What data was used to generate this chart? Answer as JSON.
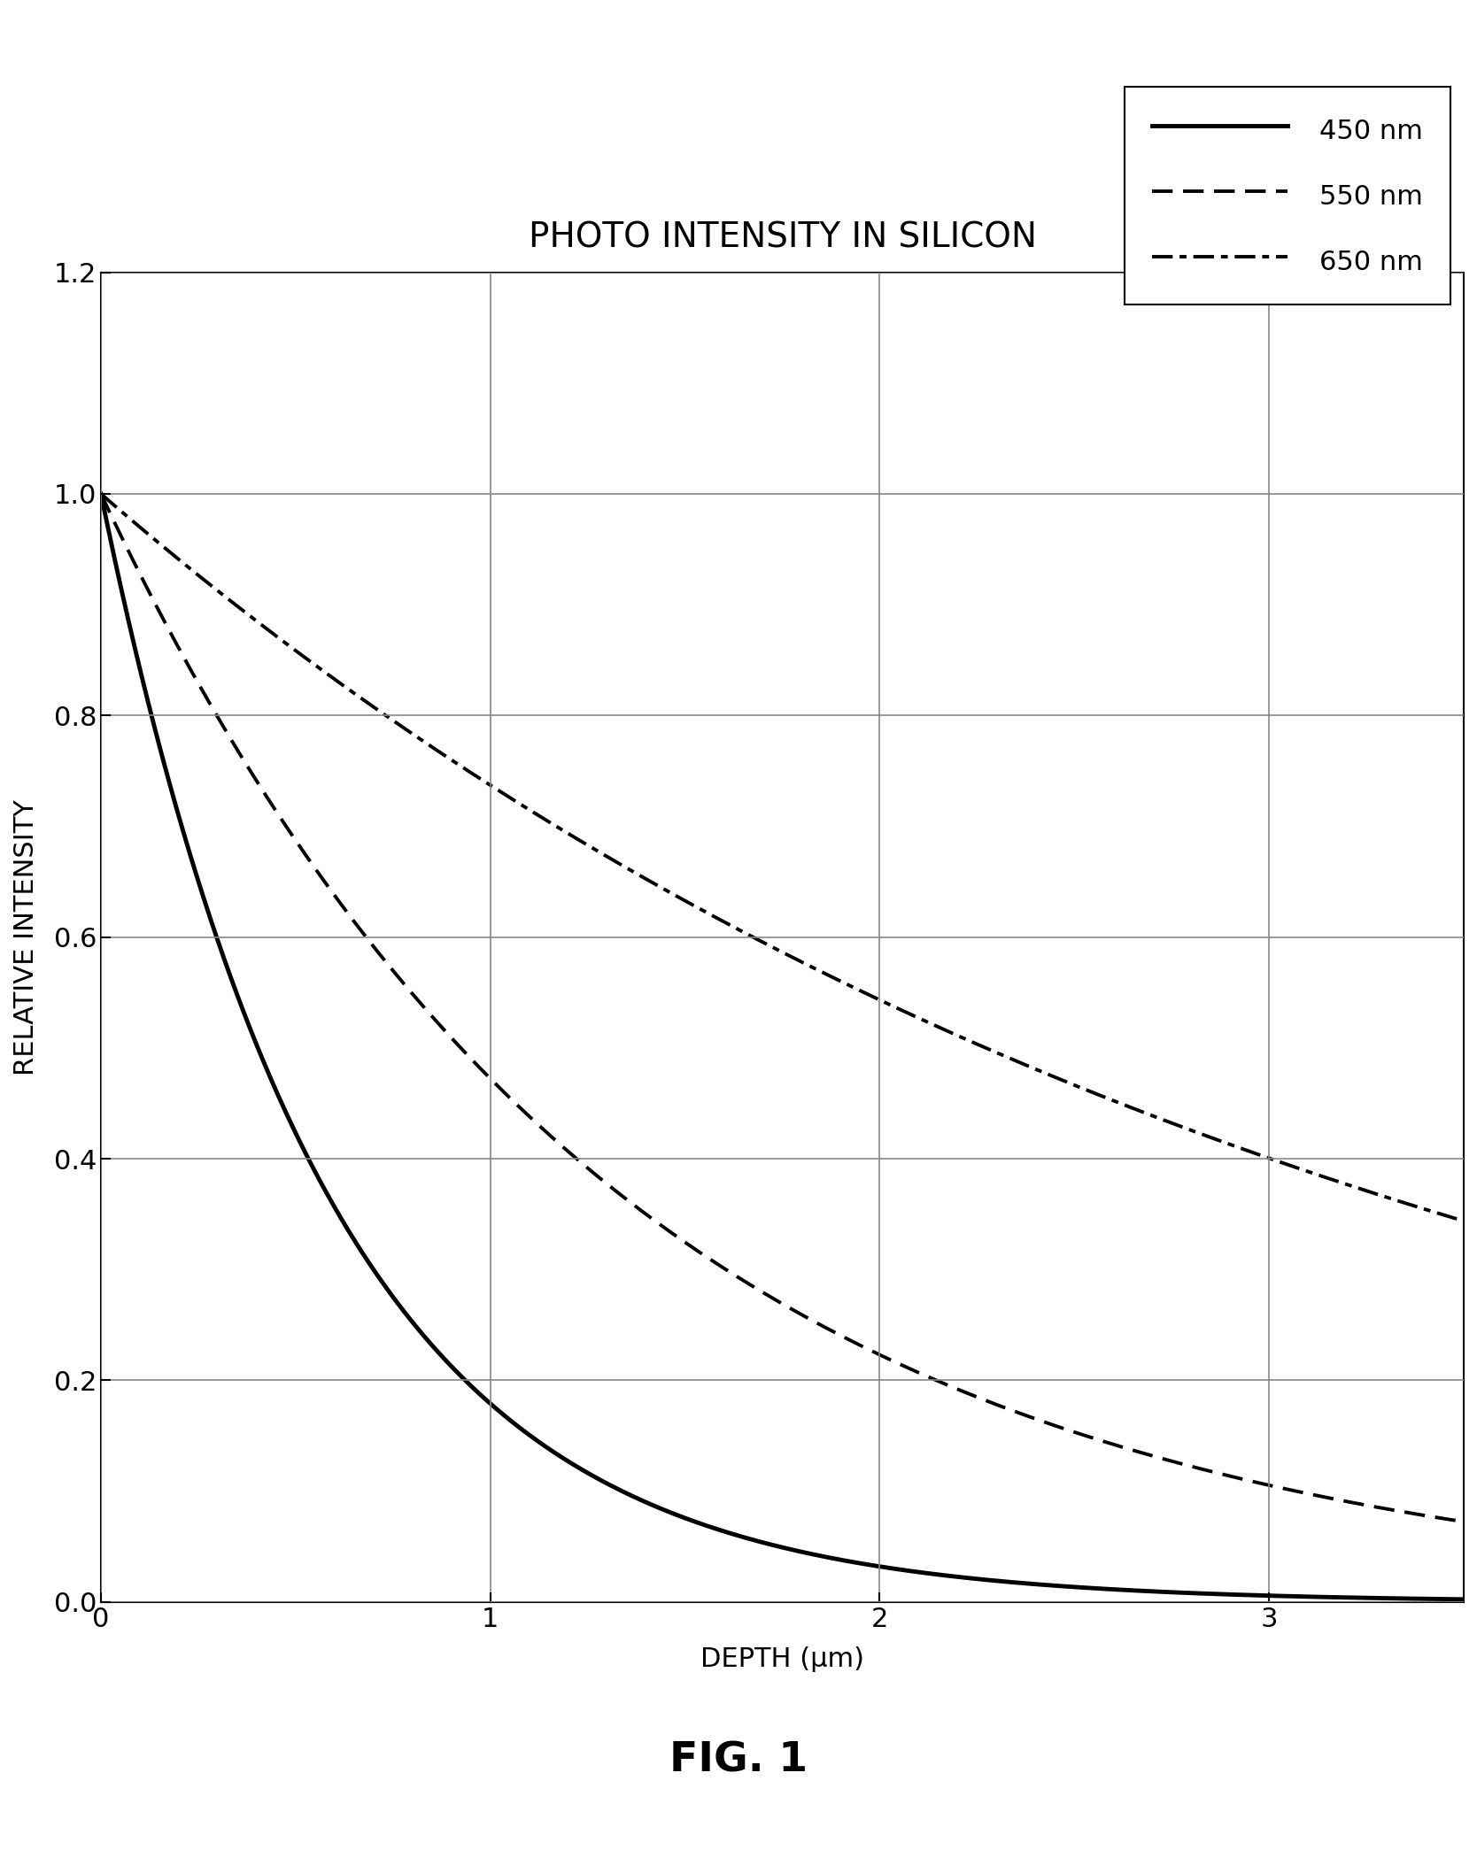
{
  "title": "PHOTO INTENSITY IN SILICON",
  "xlabel": "DEPTH (μm)",
  "ylabel": "RELATIVE INTENSITY",
  "fig_label": "FIG. 1",
  "xlim": [
    0,
    3.5
  ],
  "ylim": [
    0,
    1.2
  ],
  "xticks": [
    0,
    1,
    2,
    3
  ],
  "yticks": [
    0,
    0.2,
    0.4,
    0.6,
    0.8,
    1.0,
    1.2
  ],
  "series": [
    {
      "label": "450 nm",
      "linestyle": "solid",
      "linewidth": 3.5,
      "color": "#000000",
      "decay_constant": 1.72
    },
    {
      "label": "550 nm",
      "linestyle": "dashed",
      "linewidth": 2.8,
      "color": "#000000",
      "decay_constant": 0.75
    },
    {
      "label": "650 nm",
      "linestyle": "dashdot",
      "linewidth": 2.8,
      "color": "#000000",
      "decay_constant": 0.305
    }
  ],
  "legend_loc": "upper right",
  "legend_fontsize": 22,
  "title_fontsize": 28,
  "axis_label_fontsize": 22,
  "tick_fontsize": 22,
  "fig_label_fontsize": 34,
  "background_color": "#ffffff",
  "grid_color": "#888888",
  "grid_linewidth": 1.2,
  "figwidth": 16.68,
  "figheight": 21.16,
  "figdpi": 100
}
